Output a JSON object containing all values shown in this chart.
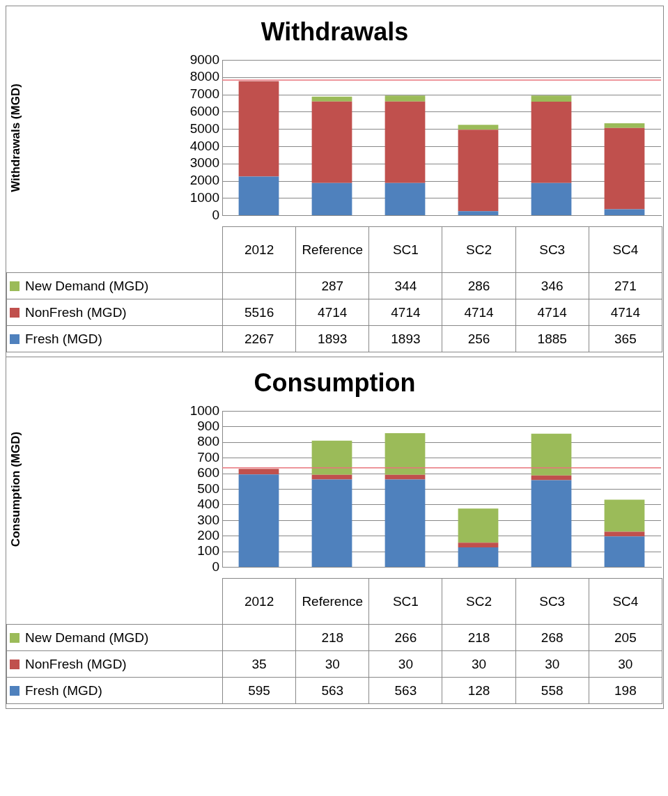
{
  "chart_data": [
    {
      "type": "bar",
      "title": "Withdrawals",
      "ylabel": "Withdrawals (MGD)",
      "categories": [
        "2012",
        "Reference",
        "SC1",
        "SC2",
        "SC3",
        "SC4"
      ],
      "stacked": true,
      "data_labels": true,
      "legend": "bottom",
      "grid": "y",
      "ylim": [
        0,
        9000
      ],
      "yticks": [
        0,
        1000,
        2000,
        3000,
        4000,
        5000,
        6000,
        7000,
        8000,
        9000
      ],
      "series": [
        {
          "name": "Fresh (MGD)",
          "color": "#4f81bd",
          "values": [
            2267,
            1893,
            1893,
            256,
            1885,
            365
          ]
        },
        {
          "name": "NonFresh (MGD)",
          "color": "#c0504d",
          "values": [
            5516,
            4714,
            4714,
            4714,
            4714,
            4714
          ]
        },
        {
          "name": "New Demand (MGD)",
          "color": "#9bbb59",
          "values": [
            null,
            287,
            344,
            286,
            346,
            271
          ]
        }
      ],
      "ref_lines": [
        {
          "axis": "y",
          "value": 7850,
          "color": "#e8747c"
        }
      ]
    },
    {
      "type": "bar",
      "title": "Consumption",
      "ylabel": "Consumption (MGD)",
      "categories": [
        "2012",
        "Reference",
        "SC1",
        "SC2",
        "SC3",
        "SC4"
      ],
      "stacked": true,
      "data_labels": true,
      "legend": "bottom",
      "grid": "y",
      "ylim": [
        0,
        1000
      ],
      "yticks": [
        0,
        100,
        200,
        300,
        400,
        500,
        600,
        700,
        800,
        900,
        1000
      ],
      "series": [
        {
          "name": "Fresh (MGD)",
          "color": "#4f81bd",
          "values": [
            595,
            563,
            563,
            128,
            558,
            198
          ]
        },
        {
          "name": "NonFresh (MGD)",
          "color": "#c0504d",
          "values": [
            35,
            30,
            30,
            30,
            30,
            30
          ]
        },
        {
          "name": "New Demand (MGD)",
          "color": "#9bbb59",
          "values": [
            null,
            218,
            266,
            218,
            268,
            205
          ]
        }
      ],
      "ref_lines": [
        {
          "axis": "y",
          "value": 637,
          "color": "#e8747c"
        }
      ]
    }
  ]
}
